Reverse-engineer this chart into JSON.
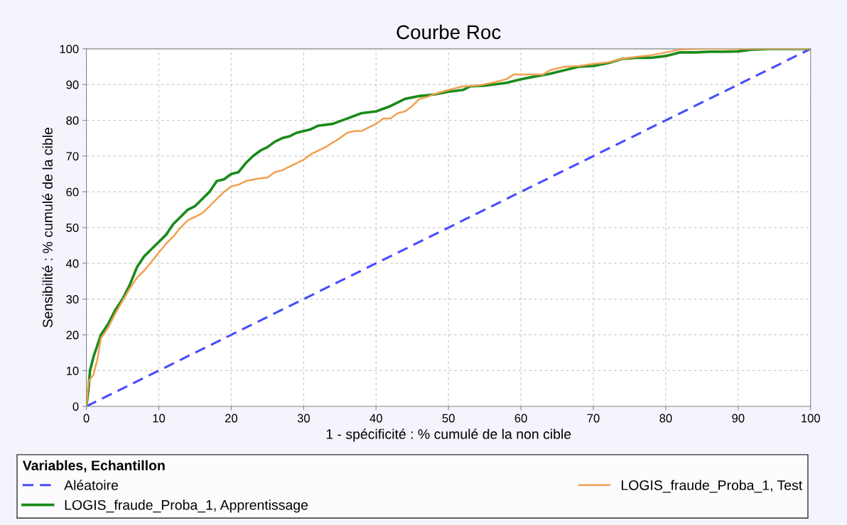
{
  "chart_data": {
    "type": "line",
    "title": "Courbe Roc",
    "xlabel": "1 - spécificité : % cumulé de la non cible",
    "ylabel": "Sensibilité : % cumulé de la cible",
    "legend_title": "Variables, Echantillon",
    "xlim": [
      0,
      100
    ],
    "ylim": [
      0,
      100
    ],
    "xticks": [
      0,
      10,
      20,
      30,
      40,
      50,
      60,
      70,
      80,
      90,
      100
    ],
    "yticks": [
      0,
      10,
      20,
      30,
      40,
      50,
      60,
      70,
      80,
      90,
      100
    ],
    "grid": true,
    "legend": "bottom",
    "marker": "none",
    "series": [
      {
        "name": "Aléatoire",
        "color": "#4a4aff",
        "line_style": "dashed",
        "x": [
          0,
          100
        ],
        "values": [
          0,
          100
        ]
      },
      {
        "name": "LOGIS_fraude_Proba_1, Apprentissage",
        "color": "#1a8a1a",
        "line_style": "solid",
        "x": [
          0,
          0.3,
          0.5,
          1,
          2,
          3,
          4,
          5,
          6,
          7,
          8,
          9,
          10,
          11,
          12,
          13,
          14,
          15,
          16,
          17,
          18,
          19,
          20,
          21,
          22,
          23,
          24,
          25,
          26,
          27,
          28,
          29,
          30,
          31,
          32,
          34,
          36,
          38,
          40,
          42,
          44,
          46,
          48,
          50,
          52,
          53,
          55,
          58,
          60,
          62,
          64,
          66,
          68,
          70,
          72,
          74,
          76,
          78,
          80,
          82,
          84,
          86,
          88,
          90,
          92,
          95,
          100
        ],
        "values": [
          0,
          5,
          10,
          14,
          20,
          23,
          27,
          30,
          34,
          39,
          42,
          44,
          46,
          48,
          51,
          53,
          55,
          56,
          58,
          60,
          63,
          63.5,
          65,
          65.5,
          68,
          70,
          71.5,
          72.5,
          74,
          75,
          75.5,
          76.5,
          77,
          77.5,
          78.5,
          79,
          80.5,
          82,
          82.5,
          84,
          86,
          86.8,
          87.2,
          88,
          88.5,
          89.5,
          89.7,
          90.5,
          91.5,
          92.3,
          93,
          94,
          95,
          95.2,
          96,
          97.2,
          97.5,
          97.5,
          98,
          99,
          99,
          99.2,
          99.2,
          99.3,
          99.8,
          100,
          100
        ]
      },
      {
        "name": "LOGIS_fraude_Proba_1, Test",
        "color": "#f0a050",
        "line_style": "solid",
        "x": [
          0,
          0.3,
          1,
          1.5,
          2,
          3,
          4,
          5,
          6,
          7,
          8,
          9,
          10,
          11,
          12,
          13,
          14,
          15,
          16,
          17,
          18,
          19,
          20,
          21,
          22,
          24,
          25,
          26,
          27,
          28,
          29,
          30,
          31,
          33,
          35,
          36,
          37,
          38,
          40,
          41,
          42,
          43,
          44,
          45,
          46,
          47,
          48,
          50,
          52,
          54,
          56,
          58,
          59,
          61,
          63,
          64,
          66,
          68,
          70,
          72,
          74,
          76,
          78,
          80,
          82,
          85,
          100
        ],
        "values": [
          0,
          7,
          9,
          13,
          19,
          22,
          26,
          29.5,
          33,
          36,
          38,
          40.5,
          43,
          45.5,
          47.5,
          50,
          52,
          53,
          54,
          56,
          58,
          60,
          61.5,
          62,
          63,
          63.8,
          64,
          65.5,
          66,
          67,
          68,
          69,
          70.5,
          72.5,
          75,
          76.5,
          77,
          77,
          79,
          80.5,
          80.5,
          82,
          82.5,
          84,
          86,
          86.5,
          87.3,
          88.5,
          89.5,
          89.7,
          90.5,
          91.5,
          92.8,
          92.8,
          92.8,
          94,
          95,
          95.2,
          95.8,
          96.2,
          97.2,
          97.8,
          98.2,
          99,
          99.8,
          100,
          100
        ]
      }
    ]
  }
}
